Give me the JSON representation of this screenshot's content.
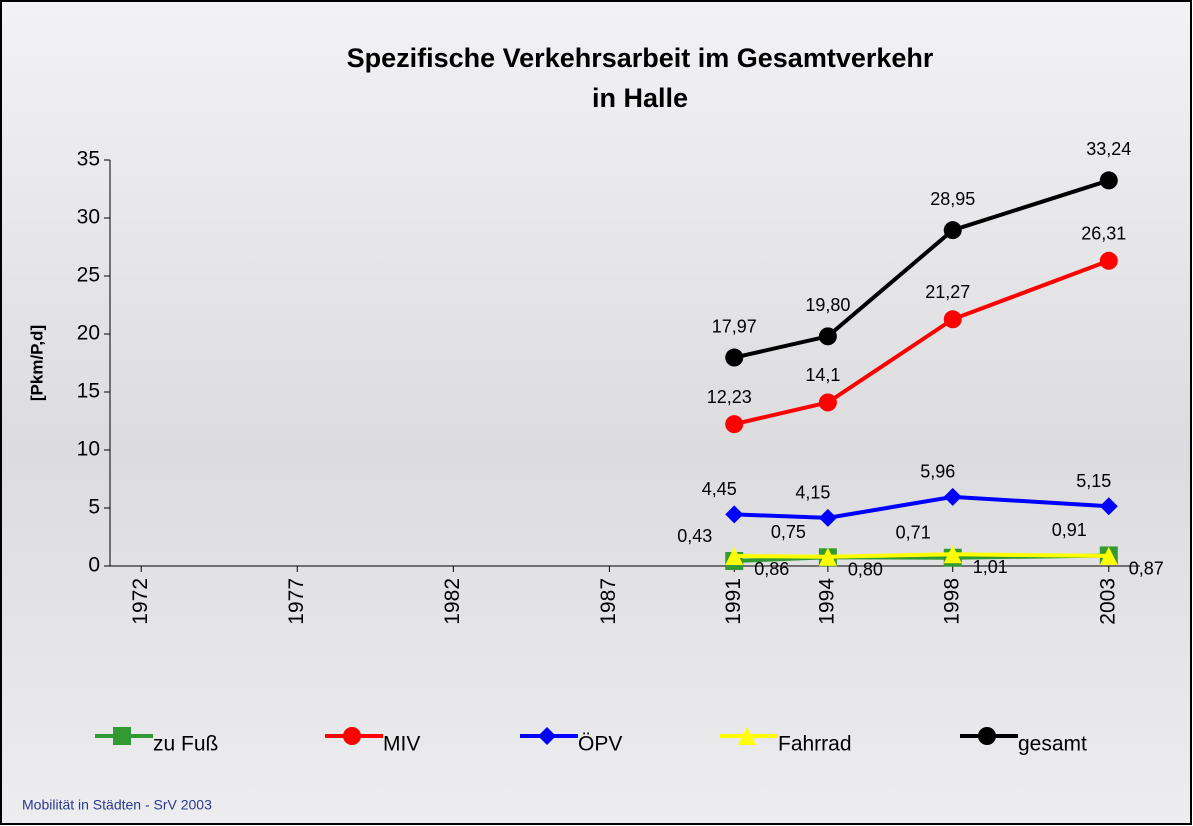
{
  "chart_data": {
    "type": "line",
    "title": "Spezifische Verkehrsarbeit im Gesamtverkehr",
    "subtitle": "in Halle",
    "y_label": "[Pkm/P,d]",
    "x": [
      1991,
      1994,
      1998,
      2003
    ],
    "xlim": [
      1971,
      2004
    ],
    "xticks": [
      1972,
      1977,
      1982,
      1987,
      1991,
      1994,
      1998,
      2003
    ],
    "ylim": [
      0,
      35
    ],
    "yticks": [
      0,
      5,
      10,
      15,
      20,
      25,
      30,
      35
    ],
    "series": [
      {
        "name": "zu Fuß",
        "color": "#339933",
        "marker": "square",
        "values": [
          0.43,
          0.75,
          0.71,
          0.91
        ],
        "value_labels": [
          "0,43",
          "0,75",
          "0,71",
          "0,91"
        ]
      },
      {
        "name": "MIV",
        "color": "#ff0000",
        "marker": "circle",
        "values": [
          12.23,
          14.1,
          21.27,
          26.31
        ],
        "value_labels": [
          "12,23",
          "14,1",
          "21,27",
          "26,31"
        ]
      },
      {
        "name": "ÖPV",
        "color": "#0000ff",
        "marker": "diamond",
        "values": [
          4.45,
          4.15,
          5.96,
          5.15
        ],
        "value_labels": [
          "4,45",
          "4,15",
          "5,96",
          "5,15"
        ]
      },
      {
        "name": "Fahrrad",
        "color": "#ffff00",
        "marker": "triangle",
        "values": [
          0.86,
          0.8,
          1.01,
          0.87
        ],
        "value_labels": [
          "0,86",
          "0,80",
          "1,01",
          "0,87"
        ]
      },
      {
        "name": "gesamt",
        "color": "#000000",
        "marker": "circle",
        "values": [
          17.97,
          19.8,
          28.95,
          33.24
        ],
        "value_labels": [
          "17,97",
          "19,80",
          "28,95",
          "33,24"
        ]
      }
    ],
    "footer": "Mobilität in Städten - SrV 2003"
  }
}
